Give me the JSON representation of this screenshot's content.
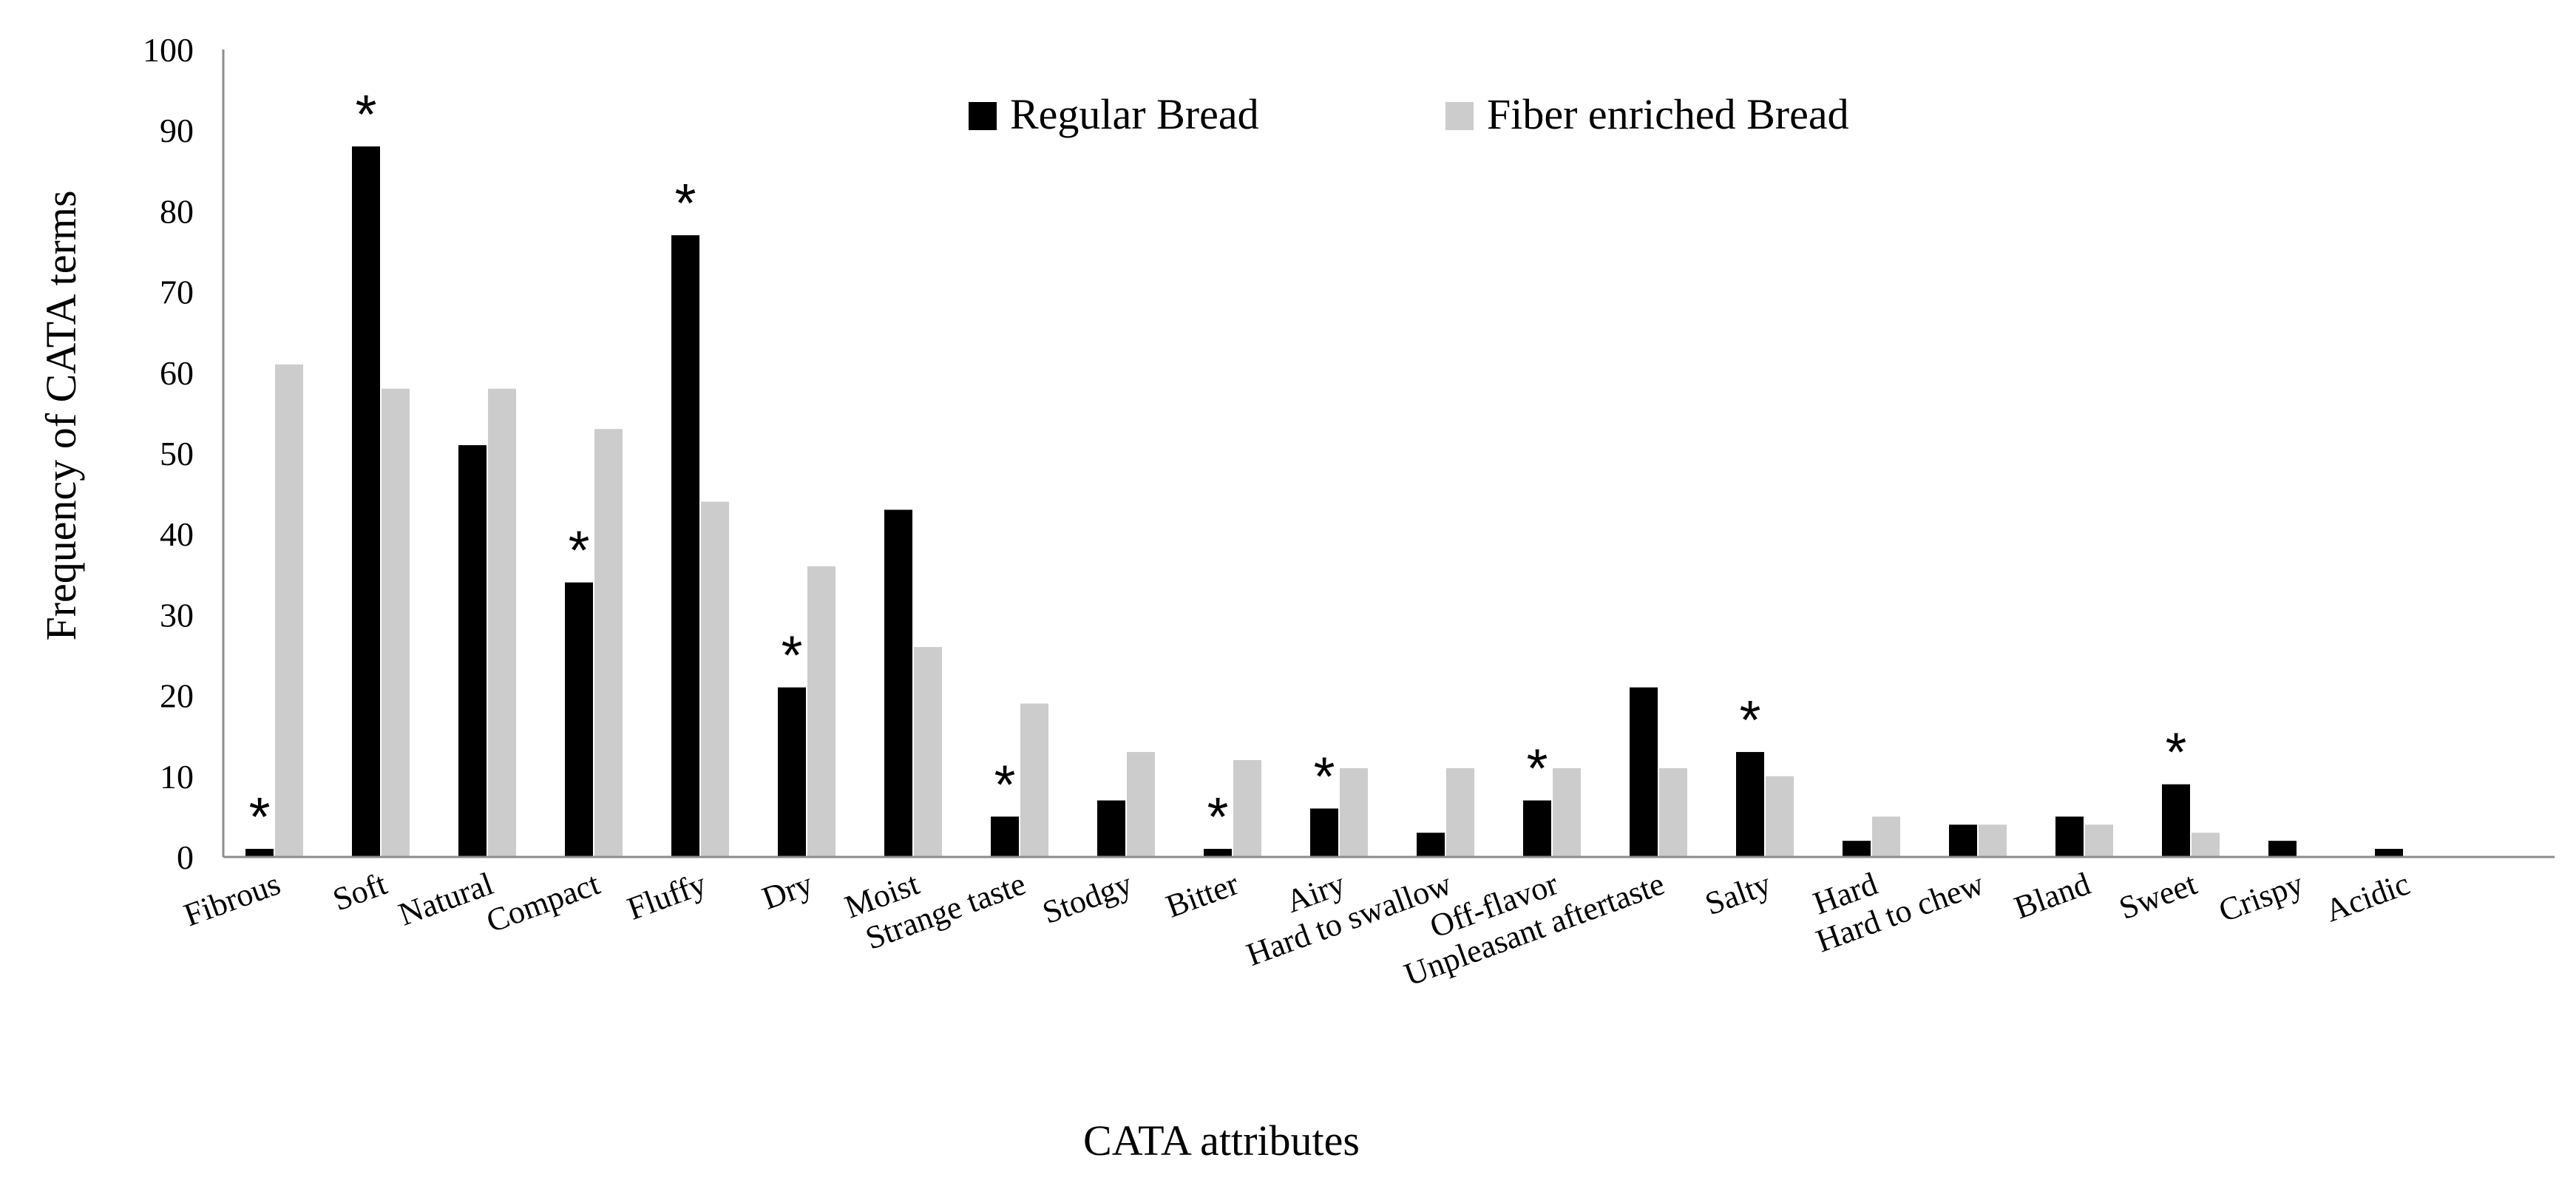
{
  "chart_data": {
    "type": "bar",
    "title": "",
    "xlabel": "CATA attributes",
    "ylabel": "Frequency of CATA terms",
    "ylim": [
      0,
      100
    ],
    "yticks": [
      0,
      10,
      20,
      30,
      40,
      50,
      60,
      70,
      80,
      90,
      100
    ],
    "categories": [
      "Fibrous",
      "Soft",
      "Natural",
      "Compact",
      "Fluffy",
      "Dry",
      "Moist",
      "Strange taste",
      "Stodgy",
      "Bitter",
      "Airy",
      "Hard to swallow",
      "Off-flavor",
      "Unpleasant aftertaste",
      "Salty",
      "Hard",
      "Hard to chew",
      "Bland",
      "Sweet",
      "Crispy",
      "Acidic"
    ],
    "series": [
      {
        "name": "Regular Bread",
        "color": "#000000",
        "values": [
          1,
          88,
          51,
          34,
          77,
          21,
          43,
          5,
          7,
          1,
          6,
          3,
          7,
          21,
          13,
          2,
          4,
          5,
          9,
          2,
          1
        ]
      },
      {
        "name": "Fiber enriched Bread",
        "color": "#cccccc",
        "values": [
          61,
          58,
          58,
          53,
          44,
          36,
          26,
          19,
          13,
          12,
          11,
          11,
          11,
          11,
          10,
          5,
          4,
          4,
          3,
          0,
          0
        ]
      }
    ],
    "significance_marker": "*",
    "significant": [
      "Fibrous",
      "Soft",
      "Compact",
      "Fluffy",
      "Dry",
      "Strange taste",
      "Bitter",
      "Airy",
      "Off-flavor",
      "Salty",
      "Sweet"
    ],
    "legend_position": "top-center",
    "grid": false
  }
}
